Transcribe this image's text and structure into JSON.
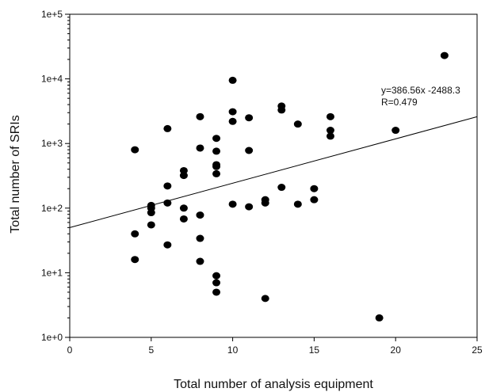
{
  "chart_data": {
    "type": "scatter",
    "title": "",
    "xlabel": "Total number of analysis equipment",
    "ylabel": "Total number of SRIs",
    "xlim": [
      0,
      25
    ],
    "ylim": [
      1,
      100000
    ],
    "y_scale": "log",
    "x_ticks": [
      0,
      5,
      10,
      15,
      20,
      25
    ],
    "x_tick_labels": [
      "0",
      "5",
      "10",
      "15",
      "20",
      "25"
    ],
    "y_ticks": [
      1,
      10,
      100,
      1000,
      10000,
      100000
    ],
    "y_tick_labels": [
      "1e+0",
      "1e+1",
      "1e+2",
      "1e+3",
      "1e+4",
      "1e+5"
    ],
    "grid": false,
    "legend": "none",
    "point_color": "#000000",
    "points": [
      {
        "x": 4,
        "y": 800
      },
      {
        "x": 4,
        "y": 40
      },
      {
        "x": 4,
        "y": 16
      },
      {
        "x": 5,
        "y": 110
      },
      {
        "x": 5,
        "y": 100
      },
      {
        "x": 5,
        "y": 85
      },
      {
        "x": 5,
        "y": 55
      },
      {
        "x": 6,
        "y": 1700
      },
      {
        "x": 6,
        "y": 220
      },
      {
        "x": 6,
        "y": 120
      },
      {
        "x": 6,
        "y": 27
      },
      {
        "x": 7,
        "y": 380
      },
      {
        "x": 7,
        "y": 320
      },
      {
        "x": 7,
        "y": 100
      },
      {
        "x": 7,
        "y": 68
      },
      {
        "x": 8,
        "y": 2600
      },
      {
        "x": 8,
        "y": 850
      },
      {
        "x": 8,
        "y": 78
      },
      {
        "x": 8,
        "y": 34
      },
      {
        "x": 8,
        "y": 15
      },
      {
        "x": 9,
        "y": 1200
      },
      {
        "x": 9,
        "y": 760
      },
      {
        "x": 9,
        "y": 470
      },
      {
        "x": 9,
        "y": 440
      },
      {
        "x": 9,
        "y": 340
      },
      {
        "x": 9,
        "y": 9
      },
      {
        "x": 9,
        "y": 7
      },
      {
        "x": 9,
        "y": 5
      },
      {
        "x": 10,
        "y": 9500
      },
      {
        "x": 10,
        "y": 3100
      },
      {
        "x": 10,
        "y": 2200
      },
      {
        "x": 10,
        "y": 115
      },
      {
        "x": 11,
        "y": 2500
      },
      {
        "x": 11,
        "y": 780
      },
      {
        "x": 11,
        "y": 105
      },
      {
        "x": 12,
        "y": 135
      },
      {
        "x": 12,
        "y": 120
      },
      {
        "x": 12,
        "y": 4
      },
      {
        "x": 13,
        "y": 3800
      },
      {
        "x": 13,
        "y": 3300
      },
      {
        "x": 13,
        "y": 210
      },
      {
        "x": 14,
        "y": 2000
      },
      {
        "x": 14,
        "y": 115
      },
      {
        "x": 15,
        "y": 200
      },
      {
        "x": 15,
        "y": 135
      },
      {
        "x": 16,
        "y": 2600
      },
      {
        "x": 16,
        "y": 1600
      },
      {
        "x": 16,
        "y": 1300
      },
      {
        "x": 19,
        "y": 2
      },
      {
        "x": 20,
        "y": 1600
      },
      {
        "x": 23,
        "y": 23000
      }
    ],
    "trendline": {
      "x": [
        0,
        25
      ],
      "y": [
        50,
        2600
      ]
    },
    "annotations": [
      "y=386.56x -2488.3",
      "R=0.479"
    ]
  }
}
